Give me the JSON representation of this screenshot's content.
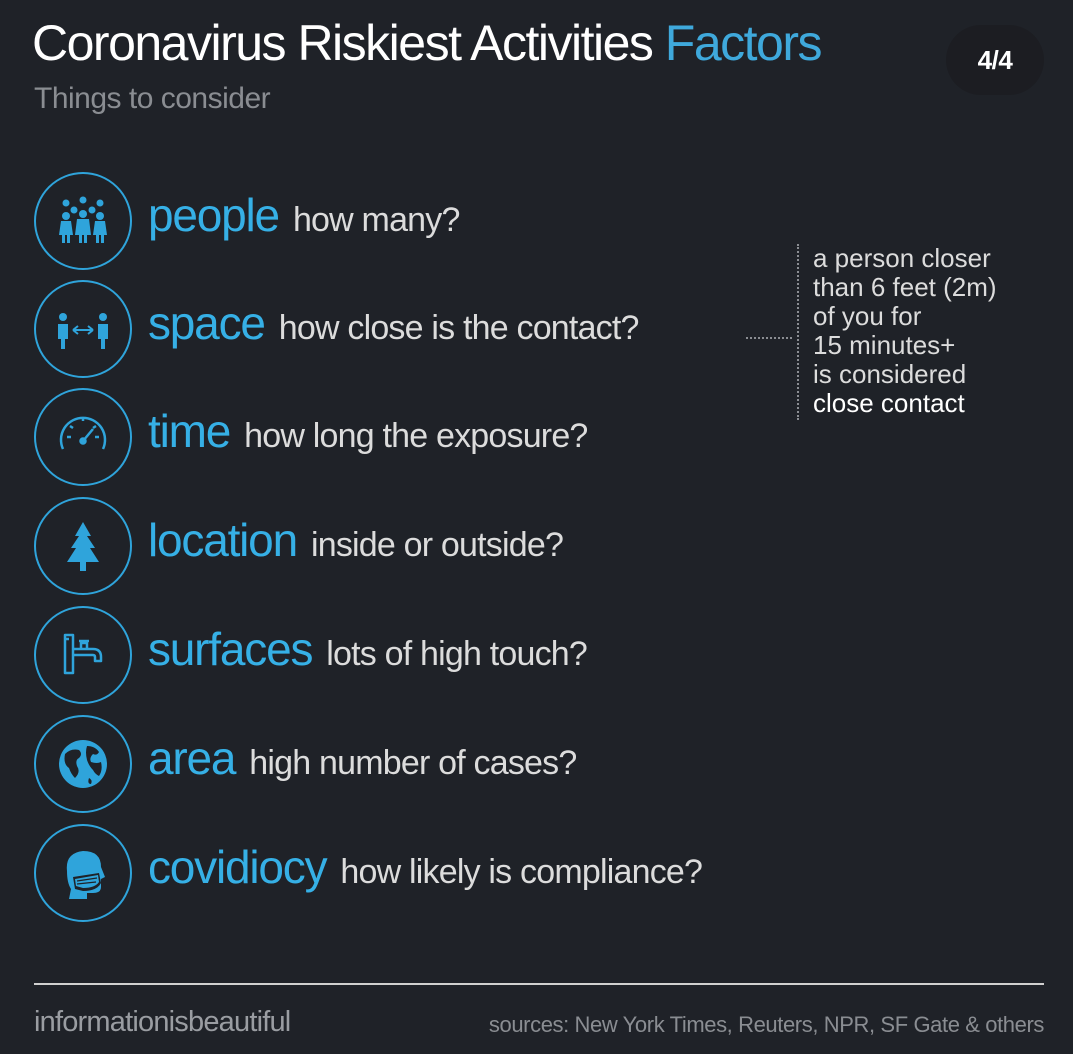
{
  "header": {
    "title_main": "Coronavirus Riskiest Activities",
    "title_accent": "Factors",
    "subtitle": "Things to consider",
    "page_indicator": "4/4"
  },
  "factors": [
    {
      "word": "people",
      "question": "how many?",
      "icon": "people-icon"
    },
    {
      "word": "space",
      "question": "how close is the contact?",
      "icon": "distance-icon"
    },
    {
      "word": "time",
      "question": "how long the exposure?",
      "icon": "gauge-icon"
    },
    {
      "word": "location",
      "question": "inside or outside?",
      "icon": "tree-icon"
    },
    {
      "word": "surfaces",
      "question": "lots of high touch?",
      "icon": "faucet-icon"
    },
    {
      "word": "area",
      "question": "high number of cases?",
      "icon": "globe-icon"
    },
    {
      "word": "covidiocy",
      "question": "how likely is compliance?",
      "icon": "mask-icon"
    }
  ],
  "note": {
    "lines": [
      "a person closer",
      "than 6 feet (2m)",
      "of you for",
      "15 minutes+",
      "is considered"
    ],
    "emphasis": "close contact"
  },
  "footer": {
    "brand": "informationisbeautiful",
    "sources": "sources: New York Times, Reuters, NPR, SF Gate & others"
  },
  "colors": {
    "background": "#1f2228",
    "accent": "#36b0e6",
    "text": "#dcdcdc",
    "muted": "#8a8d92"
  }
}
